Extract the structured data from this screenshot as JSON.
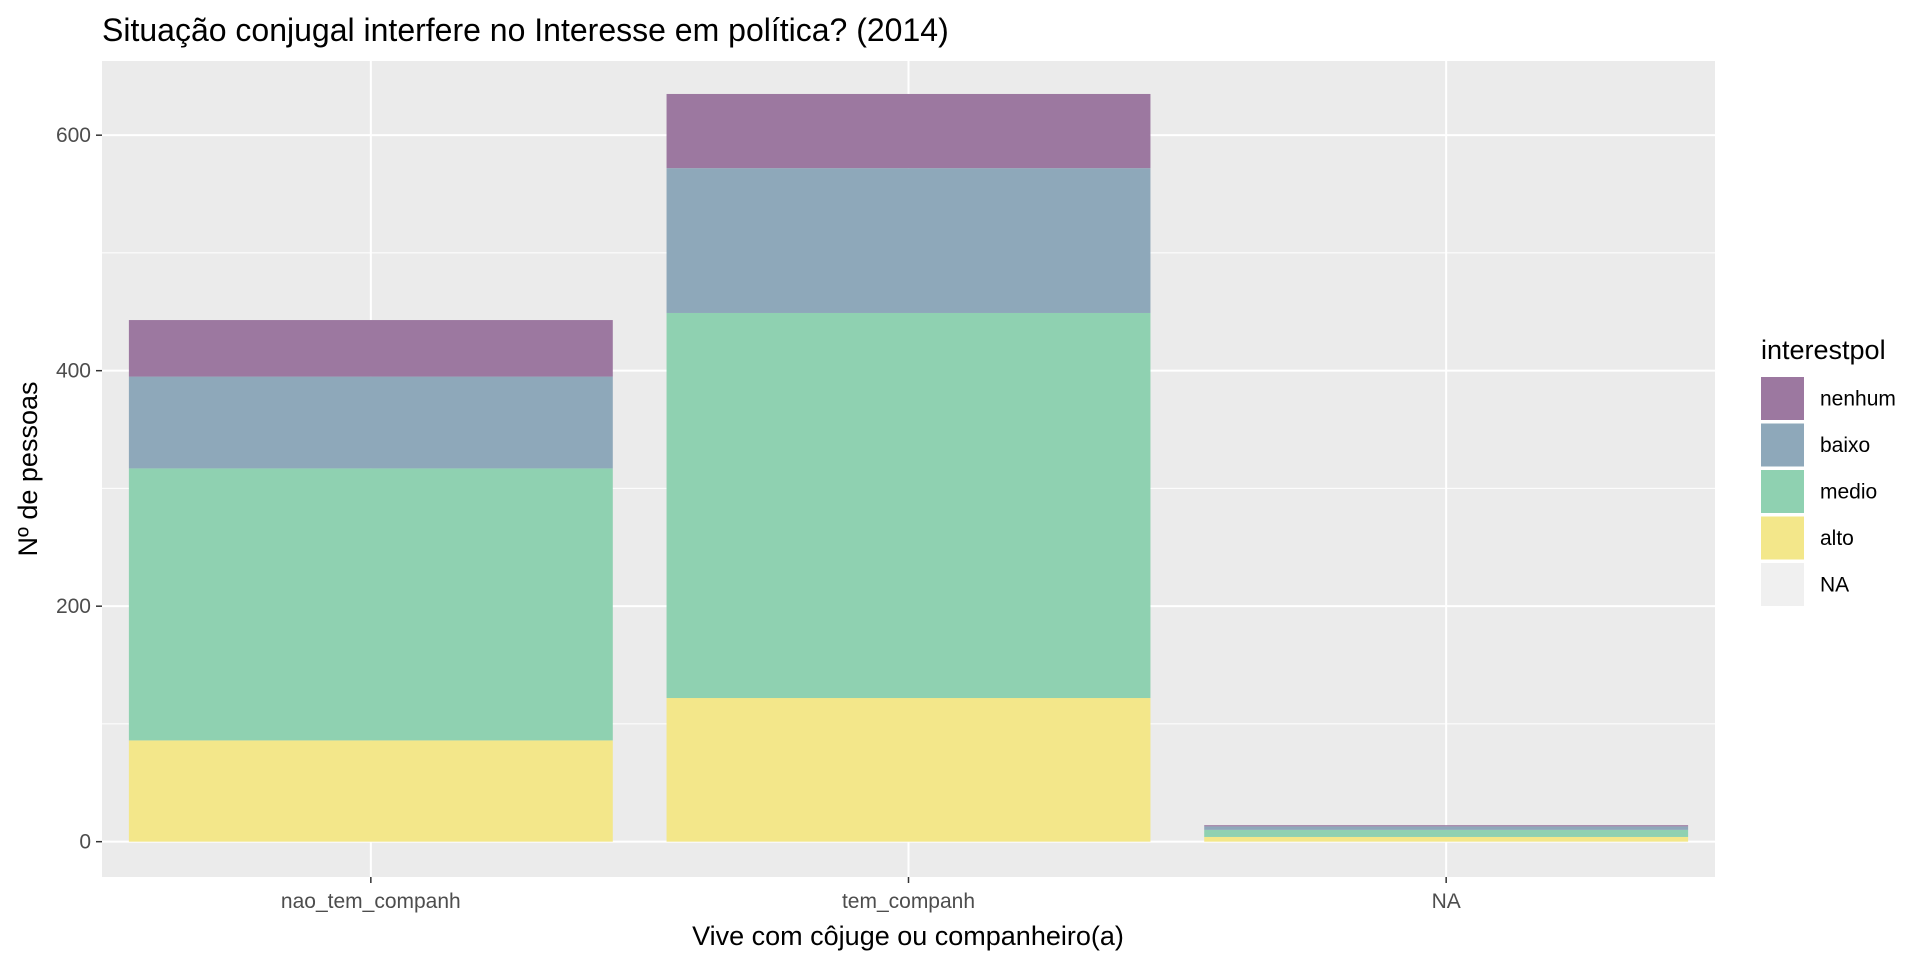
{
  "chart_data": {
    "type": "bar",
    "stacked": true,
    "title": "Situação conjugal interfere no Interesse em política? (2014)",
    "xlabel": "Vive com côjuge ou companheiro(a)",
    "ylabel": "Nº de pessoas",
    "categories": [
      "nao_tem_companh",
      "tem_companh",
      "NA"
    ],
    "ylim": [
      -30,
      663
    ],
    "yticks": [
      0,
      200,
      400,
      600
    ],
    "ytick_labels": [
      "0",
      "200",
      "400",
      "600"
    ],
    "grid": true,
    "legend_position": "right",
    "legend_title": "interestpol",
    "series": [
      {
        "name": "alto",
        "color": "#f3e78a",
        "values": [
          86,
          122,
          4
        ]
      },
      {
        "name": "medio",
        "color": "#8fd1b1",
        "values": [
          231,
          327,
          6
        ]
      },
      {
        "name": "baixo",
        "color": "#8ea8ba",
        "values": [
          78,
          123,
          3
        ]
      },
      {
        "name": "nenhum",
        "color": "#9c78a0",
        "values": [
          48,
          63,
          1
        ]
      }
    ],
    "legend": [
      {
        "name": "nenhum",
        "color": "#9c78a0"
      },
      {
        "name": "baixo",
        "color": "#8ea8ba"
      },
      {
        "name": "medio",
        "color": "#8fd1b1"
      },
      {
        "name": "alto",
        "color": "#f3e78a"
      },
      {
        "name": "NA",
        "color": "#f0f0f0"
      }
    ]
  }
}
